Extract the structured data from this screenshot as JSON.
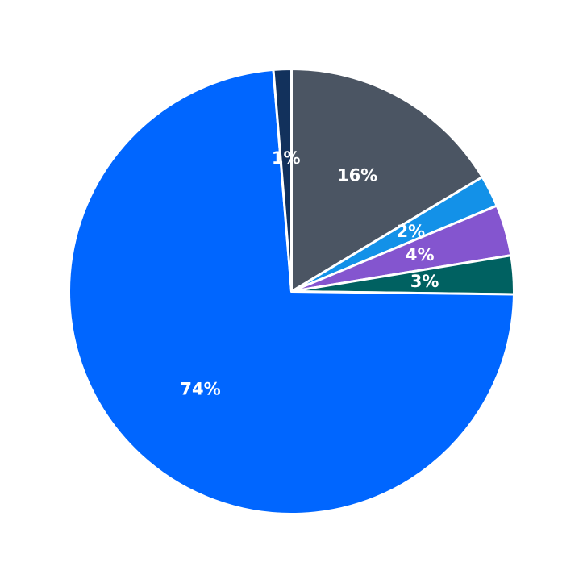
{
  "chart_data": {
    "type": "pie",
    "title": "",
    "start_angle_deg": 90,
    "direction": "clockwise",
    "slices": [
      {
        "label": "16%",
        "value": 16.4,
        "color": "#4b5563"
      },
      {
        "label": "2%",
        "value": 2.3,
        "color": "#1391e8"
      },
      {
        "label": "4%",
        "value": 3.7,
        "color": "#8455cf"
      },
      {
        "label": "3%",
        "value": 2.8,
        "color": "#006161"
      },
      {
        "label": "74%",
        "value": 73.5,
        "color": "#0066ff"
      },
      {
        "label": "1%",
        "value": 1.3,
        "color": "#12315c"
      }
    ]
  }
}
